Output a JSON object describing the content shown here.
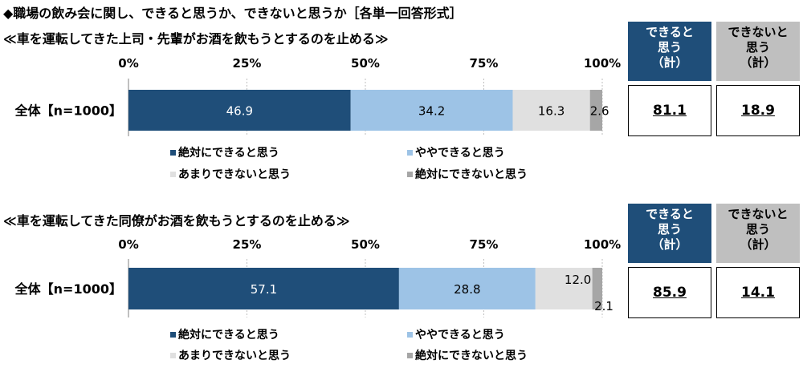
{
  "title": "◆職場の飲み会に関し、できると思うか、できないと思うか［各単一回答形式］",
  "colors": {
    "absolutely_can": "#1f4e79",
    "somewhat_can": "#9dc3e6",
    "not_really": "#e0e0e0",
    "absolutely_cannot": "#a6a6a6"
  },
  "legend": [
    "絶対にできると思う",
    "ややできると思う",
    "あまりできないと思う",
    "絶対にできないと思う"
  ],
  "summary_headers": {
    "can": "できると思う（計）",
    "can_line1": "できると",
    "can_line2": "思う",
    "can_line3": "（計）",
    "cannot_line1": "できないと",
    "cannot_line2": "思う",
    "cannot_line3": "（計）"
  },
  "chart_data": [
    {
      "type": "bar",
      "orientation": "horizontal-stacked",
      "title": "≪車を運転してきた上司・先輩がお酒を飲もうとするのを止める≫",
      "xlim": [
        0,
        100
      ],
      "ticks": [
        "0%",
        "25%",
        "50%",
        "75%",
        "100%"
      ],
      "categories": [
        "全体【n=1000】"
      ],
      "series": [
        {
          "name": "絶対にできると思う",
          "values": [
            46.9
          ]
        },
        {
          "name": "ややできると思う",
          "values": [
            34.2
          ]
        },
        {
          "name": "あまりできないと思う",
          "values": [
            16.3
          ]
        },
        {
          "name": "絶対にできないと思う",
          "values": [
            2.6
          ]
        }
      ],
      "summary": {
        "can": "81.1",
        "cannot": "18.9"
      }
    },
    {
      "type": "bar",
      "orientation": "horizontal-stacked",
      "title": "≪車を運転してきた同僚がお酒を飲もうとするのを止める≫",
      "xlim": [
        0,
        100
      ],
      "ticks": [
        "0%",
        "25%",
        "50%",
        "75%",
        "100%"
      ],
      "categories": [
        "全体【n=1000】"
      ],
      "series": [
        {
          "name": "絶対にできると思う",
          "values": [
            57.1
          ]
        },
        {
          "name": "ややできると思う",
          "values": [
            28.8
          ]
        },
        {
          "name": "あまりできないと思う",
          "values": [
            12.0
          ]
        },
        {
          "name": "絶対にできないと思う",
          "values": [
            2.1
          ]
        }
      ],
      "summary": {
        "can": "85.9",
        "cannot": "14.1"
      }
    }
  ]
}
